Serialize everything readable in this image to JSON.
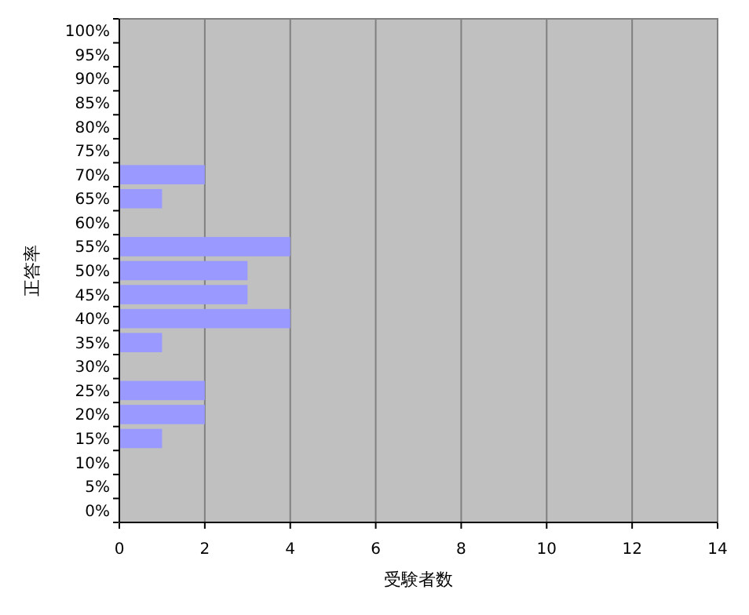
{
  "chart_data": {
    "type": "bar",
    "orientation": "horizontal",
    "xlabel": "受験者数",
    "ylabel": "正答率",
    "categories": [
      "100%",
      "95%",
      "90%",
      "85%",
      "80%",
      "75%",
      "70%",
      "65%",
      "60%",
      "55%",
      "50%",
      "45%",
      "40%",
      "35%",
      "30%",
      "25%",
      "20%",
      "15%",
      "10%",
      "5%",
      "0%"
    ],
    "values": [
      0,
      0,
      0,
      0,
      0,
      0,
      2,
      1,
      0,
      4,
      3,
      3,
      4,
      1,
      0,
      2,
      2,
      1,
      0,
      0,
      0
    ],
    "color": "#9999ff",
    "xlim": [
      0,
      14
    ],
    "xticks": [
      0,
      2,
      4,
      6,
      8,
      10,
      12,
      14
    ],
    "grid": "x"
  }
}
